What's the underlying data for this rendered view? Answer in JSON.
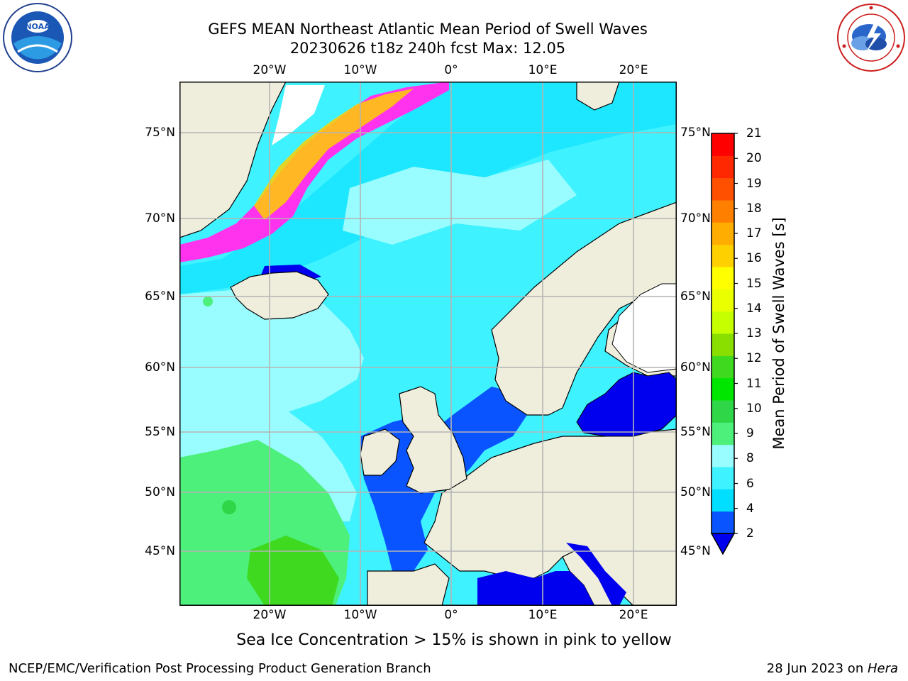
{
  "header": {
    "title_line1": "GEFS MEAN Northeast Atlantic Mean Period of Swell Waves",
    "title_line2": "20230626 t18z 240h fcst   Max: 12.05"
  },
  "map": {
    "region": "Northeast Atlantic",
    "lon_labels": [
      "20°W",
      "10°W",
      "0°",
      "10°E",
      "20°E"
    ],
    "lat_labels": [
      "75°N",
      "70°N",
      "65°N",
      "60°N",
      "55°N",
      "50°N",
      "45°N"
    ],
    "land_color": "#efeddc",
    "grid_color": "#b4b4b4",
    "ice_color": "#ff33ee"
  },
  "colorbar": {
    "title": "Mean Period of Swell Waves [s]",
    "ticks": [
      "2",
      "4",
      "6",
      "8",
      "9",
      "10",
      "11",
      "12",
      "13",
      "14",
      "15",
      "16",
      "17",
      "18",
      "19",
      "20",
      "21"
    ],
    "colors": [
      "#0a54ff",
      "#00dfff",
      "#3ff2ff",
      "#99fcff",
      "#4cf07a",
      "#2fd648",
      "#00e600",
      "#3fd91f",
      "#8ade00",
      "#c6ff00",
      "#eaff00",
      "#ffff00",
      "#ffd000",
      "#ffad00",
      "#ff8000",
      "#ff5000",
      "#ff2800",
      "#ff0000"
    ],
    "under_color": "#0000ee"
  },
  "note": "Sea Ice Concentration > 15% is shown in pink to yellow",
  "footer": {
    "left": "NCEP/EMC/Verification Post Processing Product Generation Branch",
    "right_prefix": "28 Jun 2023 on ",
    "right_host": "Hera"
  },
  "logos": {
    "left": "noaa-logo",
    "right": "nws-logo"
  }
}
